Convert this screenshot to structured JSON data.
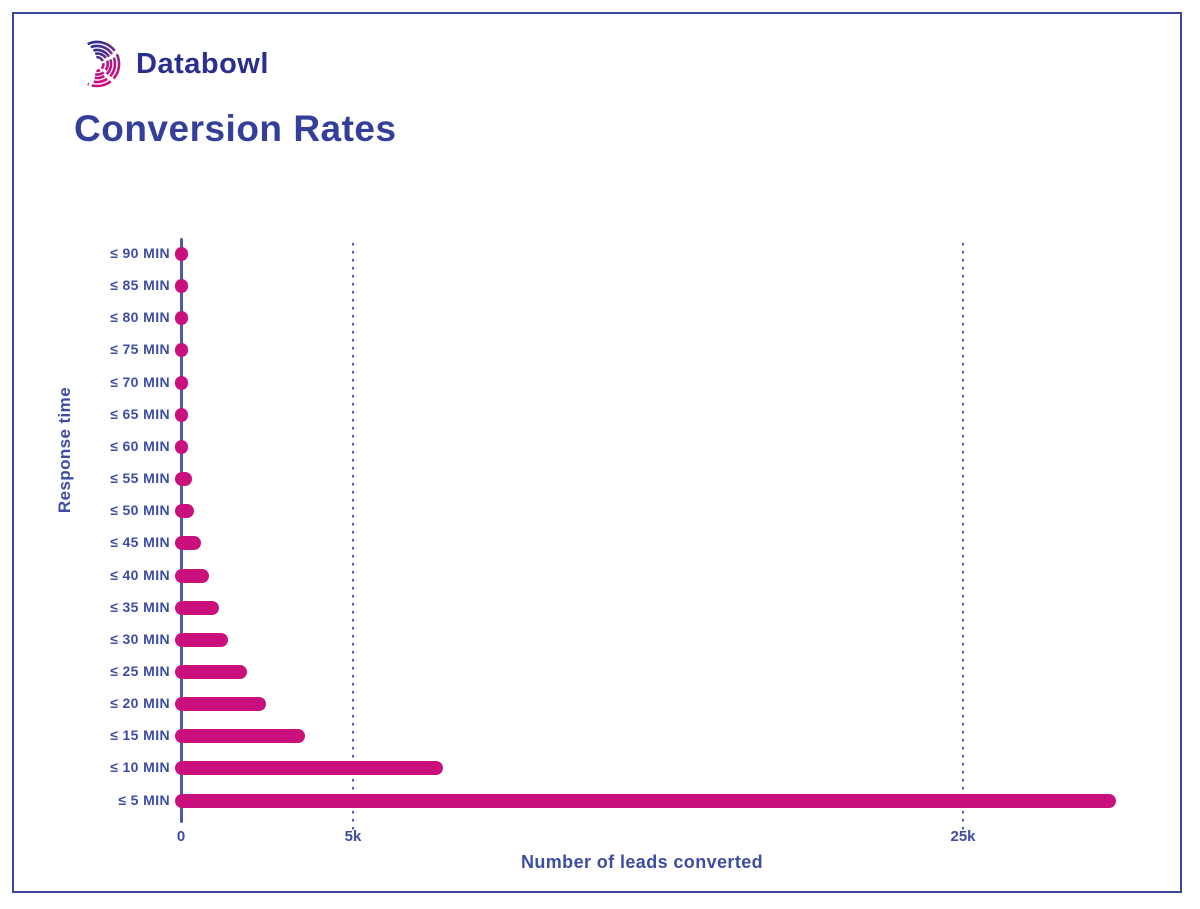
{
  "brand": {
    "name": "Databowl"
  },
  "title": "Conversion Rates",
  "colors": {
    "bar": "#c9107c",
    "axis": "#4d5aa9",
    "label_blue": "#3d4da3",
    "title_navy": "#343f9b",
    "wordmark_navy": "#2a2f8f",
    "border": "#3c479e",
    "logo_gradient_start": "#312e8f",
    "logo_gradient_end": "#e1077f"
  },
  "chart_data": {
    "type": "bar",
    "orientation": "horizontal",
    "title": "Conversion Rates",
    "xlabel": "Number of leads converted",
    "ylabel": "Response time",
    "categories": [
      "≤ 90 MIN",
      "≤ 85 MIN",
      "≤ 80 MIN",
      "≤ 75 MIN",
      "≤ 70 MIN",
      "≤ 65 MIN",
      "≤ 60 MIN",
      "≤ 55 MIN",
      "≤ 50 MIN",
      "≤ 45 MIN",
      "≤ 40 MIN",
      "≤ 35 MIN",
      "≤ 30 MIN",
      "≤ 25 MIN",
      "≤ 20 MIN",
      "≤ 15 MIN",
      "≤ 10 MIN",
      "≤ 5 MIN"
    ],
    "values": [
      50,
      60,
      70,
      80,
      90,
      110,
      150,
      320,
      380,
      580,
      810,
      1100,
      1370,
      1920,
      2470,
      3600,
      7950,
      30000
    ],
    "x_ticks": [
      {
        "label": "0",
        "value": 0
      },
      {
        "label": "5k",
        "value": 5000
      },
      {
        "label": "25k",
        "value": 25000
      }
    ],
    "xlim": [
      0,
      30000
    ],
    "grid": "dotted vertical gridlines at 5k and 25k",
    "legend": null
  }
}
